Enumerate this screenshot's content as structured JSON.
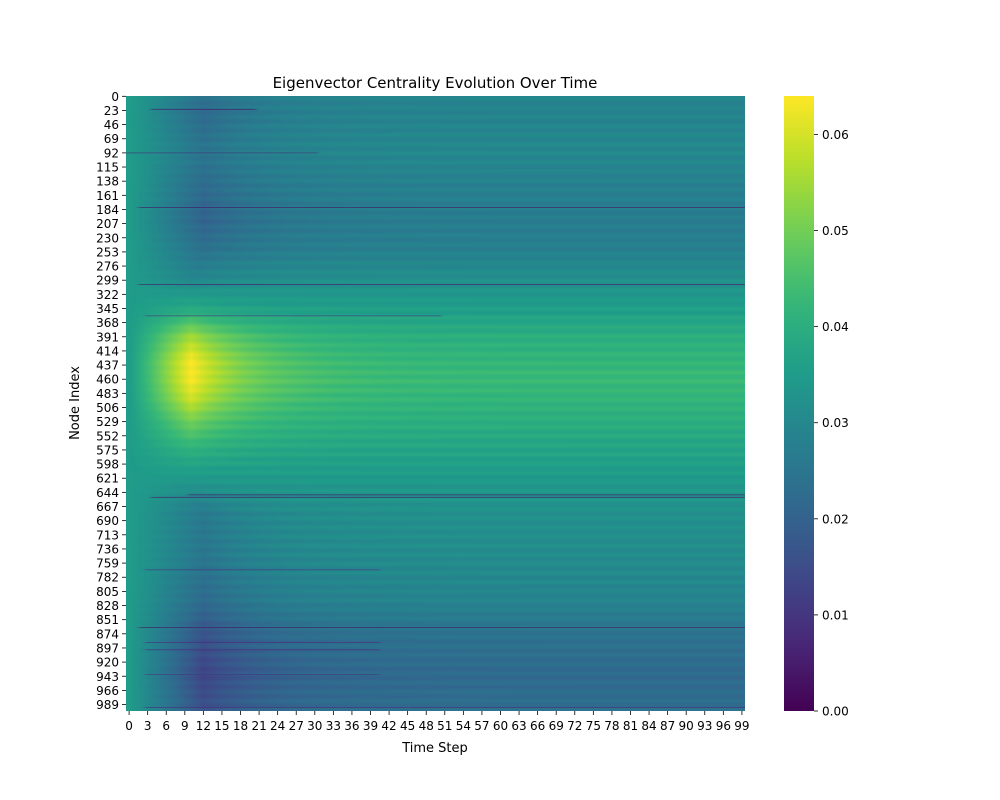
{
  "chart_data": {
    "type": "heatmap",
    "title": "Eigenvector Centrality Evolution Over Time",
    "xlabel": "Time Step",
    "ylabel": "Node Index",
    "colormap": "viridis",
    "x_range": [
      0,
      99
    ],
    "y_range": [
      0,
      999
    ],
    "x_ticks": [
      0,
      3,
      6,
      9,
      12,
      15,
      18,
      21,
      24,
      27,
      30,
      33,
      36,
      39,
      42,
      45,
      48,
      51,
      54,
      57,
      60,
      63,
      66,
      69,
      72,
      75,
      78,
      81,
      84,
      87,
      90,
      93,
      96,
      99
    ],
    "y_ticks": [
      0,
      23,
      46,
      69,
      92,
      115,
      138,
      161,
      184,
      207,
      230,
      253,
      276,
      299,
      322,
      345,
      368,
      391,
      414,
      437,
      460,
      483,
      506,
      529,
      552,
      575,
      598,
      621,
      644,
      667,
      690,
      713,
      736,
      759,
      782,
      805,
      828,
      851,
      874,
      897,
      920,
      943,
      966,
      989
    ],
    "colorbar": {
      "min": 0.0,
      "max": 0.064,
      "ticks": [
        0.0,
        0.01,
        0.02,
        0.03,
        0.04,
        0.05,
        0.06
      ],
      "tick_labels": [
        "0.00",
        "0.01",
        "0.02",
        "0.03",
        "0.04",
        "0.05",
        "0.06"
      ]
    },
    "initial_value": 0.035,
    "band_profile": [
      {
        "node": 0,
        "steady": 0.029,
        "peak": 0.024,
        "peak_step": 12
      },
      {
        "node": 30,
        "steady": 0.029,
        "peak": 0.022,
        "peak_step": 12
      },
      {
        "node": 90,
        "steady": 0.03,
        "peak": 0.025,
        "peak_step": 12
      },
      {
        "node": 150,
        "steady": 0.028,
        "peak": 0.022,
        "peak_step": 12
      },
      {
        "node": 200,
        "steady": 0.027,
        "peak": 0.02,
        "peak_step": 12
      },
      {
        "node": 250,
        "steady": 0.028,
        "peak": 0.024,
        "peak_step": 12
      },
      {
        "node": 300,
        "steady": 0.032,
        "peak": 0.03,
        "peak_step": 10
      },
      {
        "node": 350,
        "steady": 0.036,
        "peak": 0.04,
        "peak_step": 10
      },
      {
        "node": 390,
        "steady": 0.04,
        "peak": 0.055,
        "peak_step": 10
      },
      {
        "node": 430,
        "steady": 0.042,
        "peak": 0.064,
        "peak_step": 10
      },
      {
        "node": 460,
        "steady": 0.043,
        "peak": 0.064,
        "peak_step": 10
      },
      {
        "node": 490,
        "steady": 0.042,
        "peak": 0.06,
        "peak_step": 10
      },
      {
        "node": 530,
        "steady": 0.04,
        "peak": 0.05,
        "peak_step": 10
      },
      {
        "node": 580,
        "steady": 0.037,
        "peak": 0.04,
        "peak_step": 10
      },
      {
        "node": 630,
        "steady": 0.034,
        "peak": 0.033,
        "peak_step": 10
      },
      {
        "node": 680,
        "steady": 0.032,
        "peak": 0.026,
        "peak_step": 12
      },
      {
        "node": 750,
        "steady": 0.031,
        "peak": 0.025,
        "peak_step": 12
      },
      {
        "node": 820,
        "steady": 0.029,
        "peak": 0.022,
        "peak_step": 12
      },
      {
        "node": 880,
        "steady": 0.024,
        "peak": 0.016,
        "peak_step": 12
      },
      {
        "node": 940,
        "steady": 0.022,
        "peak": 0.013,
        "peak_step": 12
      },
      {
        "node": 999,
        "steady": 0.023,
        "peak": 0.016,
        "peak_step": 12
      }
    ],
    "low_centrality_rows": [
      {
        "node": 21,
        "value": 0.004,
        "from_step": 4,
        "to_step": 20
      },
      {
        "node": 92,
        "value": 0.008,
        "from_step": 0,
        "to_step": 30
      },
      {
        "node": 181,
        "value": 0.003,
        "from_step": 2,
        "to_step": 99
      },
      {
        "node": 306,
        "value": 0.004,
        "from_step": 2,
        "to_step": 99
      },
      {
        "node": 357,
        "value": 0.01,
        "from_step": 3,
        "to_step": 50
      },
      {
        "node": 648,
        "value": 0.004,
        "from_step": 10,
        "to_step": 99
      },
      {
        "node": 652,
        "value": 0.005,
        "from_step": 4,
        "to_step": 99
      },
      {
        "node": 770,
        "value": 0.01,
        "from_step": 3,
        "to_step": 40
      },
      {
        "node": 864,
        "value": 0.003,
        "from_step": 2,
        "to_step": 99
      },
      {
        "node": 888,
        "value": 0.008,
        "from_step": 3,
        "to_step": 40
      },
      {
        "node": 900,
        "value": 0.008,
        "from_step": 3,
        "to_step": 40
      },
      {
        "node": 940,
        "value": 0.01,
        "from_step": 3,
        "to_step": 40
      },
      {
        "node": 994,
        "value": 0.008,
        "from_step": 3,
        "to_step": 99
      }
    ]
  }
}
